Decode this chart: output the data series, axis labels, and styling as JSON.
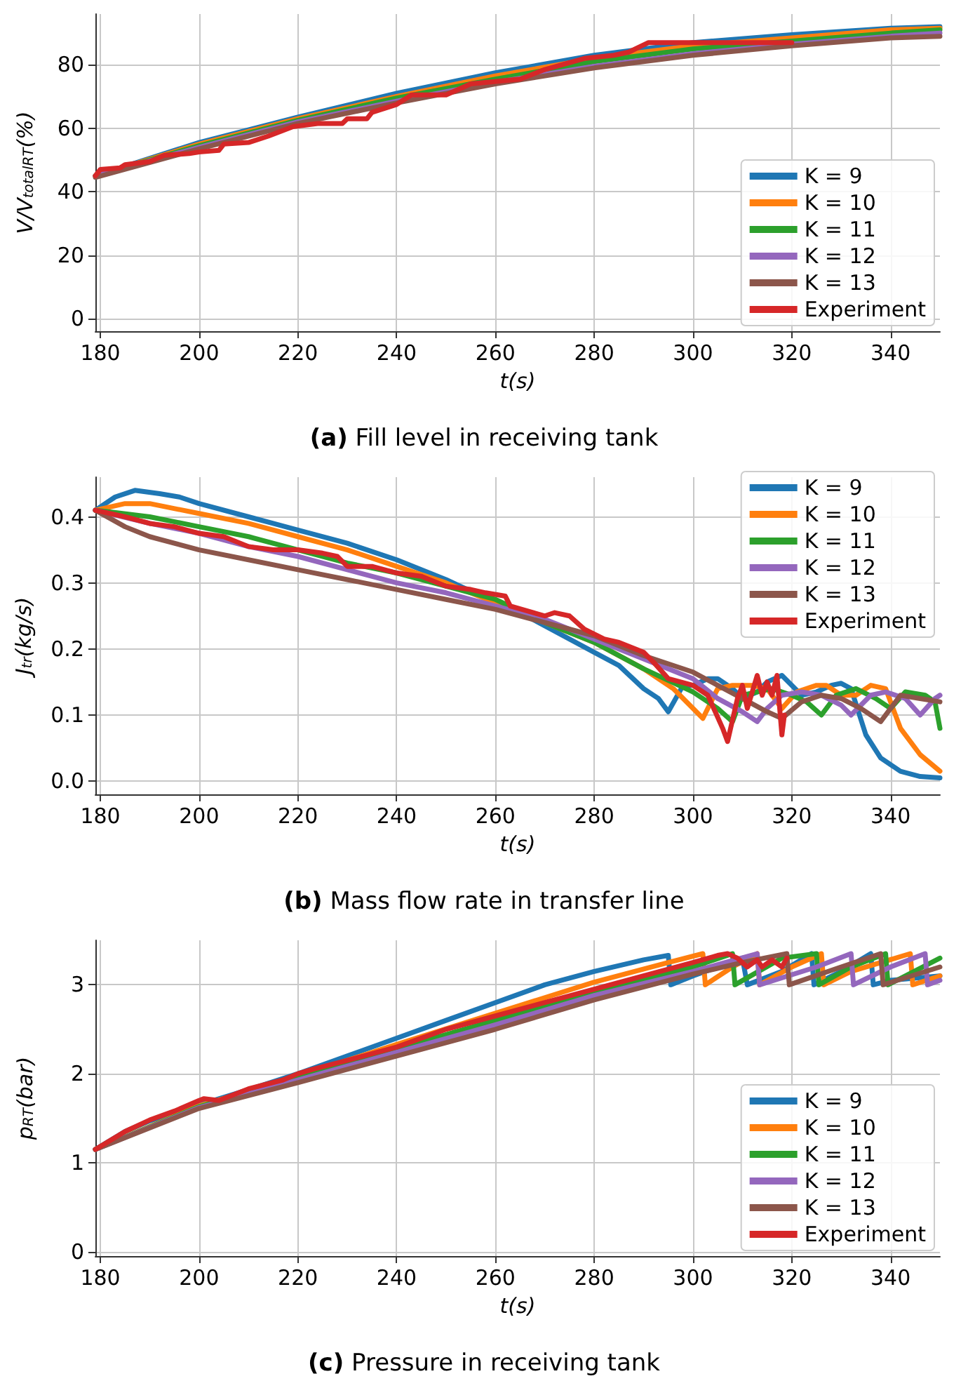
{
  "chart_data": [
    {
      "type": "line",
      "title": "(a) Fill level in receiving tank",
      "xlabel": "t(s)",
      "ylabel": "V/V$_{total}$$_{RT}$(%)",
      "xlim": [
        179,
        350
      ],
      "ylim": [
        -4,
        96
      ],
      "xticks": [
        180,
        200,
        220,
        240,
        260,
        280,
        300,
        320,
        340
      ],
      "yticks": [
        0,
        20,
        40,
        60,
        80
      ],
      "grid": true,
      "legend": "bottom right",
      "marker": "none",
      "line_style": "solid",
      "series": [
        {
          "name": "K = 9",
          "color": "#1f77b4",
          "x": [
            179,
            200,
            220,
            240,
            260,
            280,
            300,
            320,
            340,
            350
          ],
          "values": [
            45,
            55.5,
            63.5,
            71,
            77.5,
            83,
            87,
            89.5,
            91.5,
            92
          ]
        },
        {
          "name": "K = 10",
          "color": "#ff7f0e",
          "x": [
            179,
            200,
            220,
            240,
            260,
            280,
            300,
            320,
            340,
            350
          ],
          "values": [
            45,
            55,
            63,
            70,
            76.5,
            82,
            86,
            88.5,
            91,
            91.5
          ]
        },
        {
          "name": "K = 11",
          "color": "#2ca02c",
          "x": [
            179,
            200,
            220,
            240,
            260,
            280,
            300,
            320,
            340,
            350
          ],
          "values": [
            45,
            54.5,
            62.5,
            69.5,
            75.5,
            81,
            85,
            87.5,
            90,
            91
          ]
        },
        {
          "name": "K = 12",
          "color": "#9467bd",
          "x": [
            179,
            200,
            220,
            240,
            260,
            280,
            300,
            320,
            340,
            350
          ],
          "values": [
            45,
            54,
            62,
            68.5,
            74.5,
            79.5,
            83.5,
            86.5,
            89,
            90
          ]
        },
        {
          "name": "K = 13",
          "color": "#8c564b",
          "x": [
            179,
            200,
            220,
            240,
            260,
            280,
            300,
            320,
            340,
            350
          ],
          "values": [
            44.5,
            53.5,
            61.5,
            68,
            74,
            79,
            83,
            86,
            88.5,
            89
          ]
        },
        {
          "name": "Experiment",
          "color": "#d62728",
          "x": [
            179,
            180,
            184,
            185,
            190,
            193,
            198,
            200,
            204,
            205,
            210,
            214,
            219,
            224,
            229,
            230,
            234,
            235,
            240,
            243,
            250,
            255,
            265,
            270,
            278,
            284,
            287,
            291,
            300,
            320
          ],
          "values": [
            45,
            47,
            47.5,
            48.5,
            49.5,
            51.5,
            52,
            52.5,
            53,
            55,
            55.5,
            57.5,
            60.5,
            61.5,
            61.5,
            63,
            63,
            65,
            67.5,
            70.5,
            70.5,
            74,
            75.5,
            78.5,
            82,
            83,
            84,
            87,
            87,
            87
          ]
        }
      ]
    },
    {
      "type": "line",
      "title": "(b) Mass flow rate in transfer line",
      "xlabel": "t(s)",
      "ylabel": "J$_{tr}$(kg/s)",
      "xlim": [
        179,
        350
      ],
      "ylim": [
        -0.02,
        0.46
      ],
      "xticks": [
        180,
        200,
        220,
        240,
        260,
        280,
        300,
        320,
        340
      ],
      "yticks": [
        {
          "value": 0,
          "label": "0.0"
        },
        0.1,
        0.2,
        0.3,
        0.4
      ],
      "grid": true,
      "legend": "top right",
      "marker": "none",
      "line_style": "solid",
      "series": [
        {
          "name": "K = 9",
          "color": "#1f77b4",
          "x": [
            179,
            183,
            187,
            192,
            196,
            200,
            210,
            215,
            220,
            230,
            240,
            250,
            260,
            265,
            270,
            280,
            285,
            290,
            293,
            295,
            298,
            300,
            303,
            305,
            308,
            310,
            313,
            315,
            318,
            322,
            325,
            328,
            330,
            332,
            335,
            338,
            342,
            346,
            350
          ],
          "values": [
            0.41,
            0.43,
            0.44,
            0.435,
            0.43,
            0.42,
            0.4,
            0.39,
            0.38,
            0.36,
            0.335,
            0.305,
            0.27,
            0.255,
            0.235,
            0.195,
            0.175,
            0.14,
            0.125,
            0.105,
            0.145,
            0.145,
            0.155,
            0.155,
            0.14,
            0.125,
            0.135,
            0.15,
            0.16,
            0.13,
            0.135,
            0.145,
            0.148,
            0.14,
            0.07,
            0.035,
            0.015,
            0.007,
            0.005
          ]
        },
        {
          "name": "K = 10",
          "color": "#ff7f0e",
          "x": [
            179,
            185,
            190,
            200,
            210,
            220,
            230,
            240,
            250,
            260,
            270,
            280,
            290,
            296,
            300,
            302,
            305,
            308,
            312,
            315,
            318,
            321,
            325,
            327,
            330,
            333,
            336,
            339,
            342,
            346,
            350
          ],
          "values": [
            0.41,
            0.42,
            0.42,
            0.405,
            0.39,
            0.37,
            0.35,
            0.325,
            0.3,
            0.27,
            0.24,
            0.21,
            0.17,
            0.14,
            0.11,
            0.095,
            0.14,
            0.145,
            0.145,
            0.14,
            0.11,
            0.135,
            0.145,
            0.145,
            0.13,
            0.13,
            0.145,
            0.14,
            0.08,
            0.04,
            0.015
          ]
        },
        {
          "name": "K = 11",
          "color": "#2ca02c",
          "x": [
            179,
            190,
            200,
            210,
            220,
            230,
            240,
            250,
            260,
            270,
            280,
            290,
            300,
            305,
            308,
            310,
            313,
            316,
            320,
            323,
            326,
            329,
            333,
            337,
            340,
            343,
            347,
            349,
            350
          ],
          "values": [
            0.41,
            0.4,
            0.385,
            0.37,
            0.35,
            0.33,
            0.315,
            0.295,
            0.275,
            0.24,
            0.21,
            0.17,
            0.135,
            0.11,
            0.09,
            0.13,
            0.135,
            0.14,
            0.13,
            0.12,
            0.1,
            0.13,
            0.14,
            0.125,
            0.11,
            0.135,
            0.13,
            0.12,
            0.08
          ]
        },
        {
          "name": "K = 12",
          "color": "#9467bd",
          "x": [
            179,
            190,
            200,
            210,
            220,
            230,
            240,
            250,
            260,
            270,
            280,
            290,
            300,
            305,
            310,
            313,
            315,
            318,
            322,
            326,
            330,
            332,
            336,
            339,
            343,
            346,
            349,
            350
          ],
          "values": [
            0.41,
            0.39,
            0.375,
            0.355,
            0.34,
            0.32,
            0.3,
            0.285,
            0.265,
            0.245,
            0.215,
            0.185,
            0.155,
            0.125,
            0.105,
            0.09,
            0.11,
            0.13,
            0.135,
            0.13,
            0.115,
            0.1,
            0.13,
            0.135,
            0.125,
            0.1,
            0.125,
            0.13
          ]
        },
        {
          "name": "K = 13",
          "color": "#8c564b",
          "x": [
            179,
            185,
            190,
            200,
            210,
            220,
            230,
            240,
            250,
            260,
            270,
            280,
            290,
            300,
            305,
            310,
            315,
            318,
            322,
            326,
            330,
            334,
            338,
            342,
            346,
            350
          ],
          "values": [
            0.41,
            0.385,
            0.37,
            0.35,
            0.335,
            0.32,
            0.305,
            0.29,
            0.275,
            0.26,
            0.24,
            0.22,
            0.19,
            0.165,
            0.145,
            0.125,
            0.105,
            0.095,
            0.12,
            0.13,
            0.125,
            0.11,
            0.09,
            0.13,
            0.125,
            0.12
          ]
        },
        {
          "name": "Experiment",
          "color": "#d62728",
          "x": [
            179,
            185,
            190,
            195,
            200,
            205,
            210,
            215,
            220,
            225,
            228,
            230,
            235,
            240,
            245,
            250,
            255,
            258,
            262,
            263,
            270,
            272,
            275,
            278,
            282,
            285,
            290,
            292,
            295,
            300,
            303,
            306,
            307,
            309,
            310,
            311,
            313,
            314,
            315,
            316,
            317,
            318,
            318.5
          ],
          "values": [
            0.41,
            0.4,
            0.39,
            0.385,
            0.375,
            0.37,
            0.355,
            0.35,
            0.35,
            0.345,
            0.34,
            0.325,
            0.325,
            0.315,
            0.31,
            0.295,
            0.29,
            0.285,
            0.28,
            0.265,
            0.25,
            0.255,
            0.25,
            0.23,
            0.215,
            0.21,
            0.195,
            0.18,
            0.155,
            0.145,
            0.13,
            0.08,
            0.06,
            0.125,
            0.145,
            0.11,
            0.16,
            0.13,
            0.15,
            0.13,
            0.16,
            0.07,
            0.1
          ]
        }
      ]
    },
    {
      "type": "line",
      "title": "(c) Pressure in receiving tank",
      "xlabel": "t(s)",
      "ylabel": "p$_{RT}$(bar)",
      "xlim": [
        179,
        350
      ],
      "ylim": [
        -0.05,
        3.5
      ],
      "xticks": [
        180,
        200,
        220,
        240,
        260,
        280,
        300,
        320,
        340
      ],
      "yticks": [
        0,
        1,
        2,
        3
      ],
      "grid": true,
      "legend": "bottom right",
      "marker": "none",
      "line_style": "solid",
      "series": [
        {
          "name": "K = 9",
          "color": "#1f77b4",
          "x": [
            179,
            185,
            190,
            200,
            210,
            220,
            230,
            240,
            250,
            260,
            270,
            280,
            290,
            295,
            295.5,
            300,
            305,
            310,
            311,
            318,
            324,
            324.5,
            330,
            336,
            336.5,
            340,
            350
          ],
          "values": [
            1.15,
            1.35,
            1.47,
            1.65,
            1.82,
            2,
            2.2,
            2.4,
            2.6,
            2.8,
            3,
            3.15,
            3.28,
            3.33,
            3,
            3.1,
            3.2,
            3.3,
            3,
            3.15,
            3.35,
            3,
            3.15,
            3.35,
            3,
            3.05,
            3.1
          ]
        },
        {
          "name": "K = 10",
          "color": "#ff7f0e",
          "x": [
            179,
            200,
            220,
            240,
            260,
            280,
            295,
            302,
            302.5,
            308,
            313,
            313.5,
            320,
            326,
            326.5,
            332,
            344,
            344.5,
            350
          ],
          "values": [
            1.15,
            1.64,
            1.97,
            2.33,
            2.68,
            3.03,
            3.25,
            3.35,
            3,
            3.2,
            3.35,
            3,
            3.2,
            3.35,
            3,
            3.15,
            3.35,
            3,
            3.1
          ]
        },
        {
          "name": "K = 11",
          "color": "#2ca02c",
          "x": [
            179,
            200,
            220,
            240,
            260,
            280,
            300,
            308,
            308.5,
            318,
            325,
            325.5,
            332,
            339,
            339.5,
            350
          ],
          "values": [
            1.15,
            1.63,
            1.95,
            2.28,
            2.6,
            2.93,
            3.2,
            3.35,
            3,
            3.3,
            3.35,
            3,
            3.2,
            3.35,
            3,
            3.3
          ]
        },
        {
          "name": "K = 12",
          "color": "#9467bd",
          "x": [
            179,
            200,
            220,
            240,
            260,
            280,
            300,
            313,
            313.5,
            325,
            332,
            332.5,
            340,
            347,
            347.5,
            350
          ],
          "values": [
            1.15,
            1.62,
            1.93,
            2.24,
            2.55,
            2.88,
            3.15,
            3.35,
            3,
            3.2,
            3.35,
            3,
            3.2,
            3.35,
            3,
            3.05
          ]
        },
        {
          "name": "K = 13",
          "color": "#8c564b",
          "x": [
            179,
            200,
            220,
            240,
            260,
            280,
            300,
            310,
            319,
            319.5,
            330,
            338,
            338.5,
            350
          ],
          "values": [
            1.15,
            1.61,
            1.9,
            2.2,
            2.5,
            2.83,
            3.12,
            3.25,
            3.35,
            3,
            3.2,
            3.35,
            3,
            3.2
          ]
        },
        {
          "name": "Experiment",
          "color": "#d62728",
          "x": [
            179,
            185,
            190,
            195,
            200,
            201,
            204,
            210,
            217,
            220,
            223,
            230,
            240,
            250,
            260,
            270,
            280,
            290,
            300,
            305,
            307,
            309,
            311,
            313,
            314,
            316,
            318,
            319
          ],
          "values": [
            1.15,
            1.35,
            1.48,
            1.58,
            1.7,
            1.72,
            1.7,
            1.83,
            1.93,
            2,
            2.05,
            2.15,
            2.3,
            2.5,
            2.65,
            2.8,
            2.95,
            3.1,
            3.25,
            3.33,
            3.35,
            3.3,
            3.2,
            3.28,
            3.2,
            3.28,
            3.2,
            3.3
          ]
        }
      ]
    }
  ]
}
